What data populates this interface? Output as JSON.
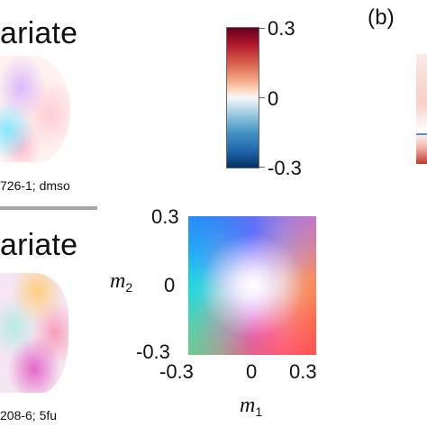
{
  "panels": {
    "top": {
      "heading": "ariate",
      "caption": "726-1; dmso"
    },
    "bottom": {
      "heading": "ariate",
      "caption": "208-6; 5fu"
    },
    "panel_b": {
      "label": "(b)"
    }
  },
  "colorbar": {
    "ticks": [
      "0.3",
      "0",
      "-0.3"
    ],
    "colors": [
      "#67001f",
      "#b2182b",
      "#f4a582",
      "#f7f7f7",
      "#92c5de",
      "#2166ac",
      "#053061"
    ]
  },
  "color_key": {
    "x_ticks": [
      "-0.3",
      "0",
      "0.3"
    ],
    "y_ticks": [
      "0.3",
      "0",
      "-0.3"
    ],
    "x_label": "m",
    "x_label_sub": "1",
    "y_label": "m",
    "y_label_sub": "2"
  }
}
